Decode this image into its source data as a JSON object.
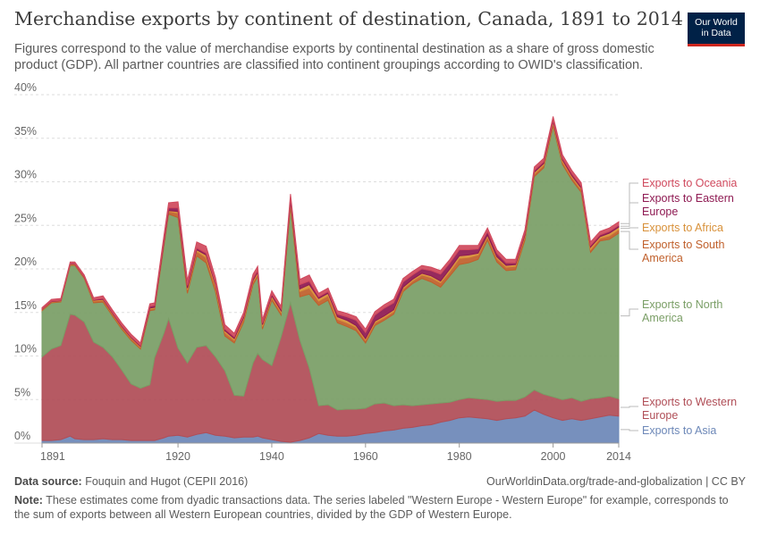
{
  "header": {
    "title": "Merchandise exports by continent of destination, Canada, 1891 to 2014",
    "subtitle": "Figures correspond to the value of merchandise exports by continental destination as a share of gross domestic product (GDP). All partner countries are classified into continent groupings according to OWID's classification."
  },
  "logo": {
    "line1": "Our World",
    "line2": "in Data",
    "bg": "#002147",
    "accent": "#ce261e"
  },
  "footer": {
    "source_label": "Data source:",
    "source_text": "Fouquin and Hugot (CEPII 2016)",
    "url": "OurWorldinData.org/trade-and-globalization | CC BY",
    "note_label": "Note:",
    "note_text": "These estimates come from dyadic transactions data. The series labeled \"Western Europe - Western Europe\" for example, corresponds to the sum of exports between all Western European countries, divided by the GDP of Western Europe."
  },
  "chart_data": {
    "type": "area",
    "stacked": true,
    "xlabel": "",
    "ylabel": "",
    "xlim": [
      1891,
      2014
    ],
    "ylim": [
      0,
      40
    ],
    "y_ticks": [
      "0%",
      "5%",
      "10%",
      "15%",
      "20%",
      "25%",
      "30%",
      "35%",
      "40%"
    ],
    "x_ticks": [
      "1891",
      "1920",
      "1940",
      "1960",
      "1980",
      "2000",
      "2014"
    ],
    "grid": true,
    "legend_placement": "right (inline labels)",
    "x": [
      1891,
      1893,
      1895,
      1897,
      1898,
      1900,
      1902,
      1904,
      1906,
      1908,
      1910,
      1912,
      1914,
      1915,
      1917,
      1918,
      1920,
      1922,
      1924,
      1926,
      1928,
      1930,
      1932,
      1934,
      1936,
      1937,
      1938,
      1940,
      1942,
      1944,
      1946,
      1948,
      1950,
      1952,
      1954,
      1956,
      1958,
      1960,
      1962,
      1964,
      1966,
      1968,
      1970,
      1972,
      1974,
      1976,
      1978,
      1980,
      1982,
      1984,
      1986,
      1988,
      1990,
      1992,
      1994,
      1996,
      1998,
      2000,
      2002,
      2004,
      2006,
      2008,
      2010,
      2012,
      2014
    ],
    "series": [
      {
        "name": "Exports to Asia",
        "color": "#6d88b8",
        "values": [
          0.3,
          0.3,
          0.4,
          0.8,
          0.5,
          0.4,
          0.4,
          0.5,
          0.4,
          0.4,
          0.3,
          0.3,
          0.3,
          0.3,
          0.6,
          0.8,
          0.9,
          0.7,
          1.0,
          1.2,
          0.9,
          0.8,
          0.6,
          0.7,
          0.7,
          0.8,
          0.6,
          0.4,
          0.2,
          0.1,
          0.3,
          0.6,
          1.1,
          0.9,
          0.8,
          0.8,
          0.9,
          1.1,
          1.2,
          1.4,
          1.5,
          1.7,
          1.8,
          2.0,
          2.1,
          2.4,
          2.6,
          2.9,
          3.0,
          2.9,
          2.8,
          2.6,
          2.8,
          2.9,
          3.1,
          3.8,
          3.3,
          2.9,
          2.6,
          2.8,
          2.6,
          2.8,
          3.0,
          3.2,
          3.1
        ]
      },
      {
        "name": "Exports to Western Europe",
        "color": "#b04e57",
        "values": [
          9.6,
          10.5,
          10.8,
          14.0,
          14.2,
          13.5,
          11.2,
          10.5,
          9.5,
          8.0,
          6.5,
          6.0,
          6.4,
          9.5,
          12.0,
          13.5,
          10.0,
          8.5,
          10.0,
          10.0,
          9.0,
          7.5,
          4.9,
          4.7,
          8.5,
          9.5,
          9.0,
          8.5,
          12.0,
          16.0,
          11.5,
          8.0,
          3.2,
          3.5,
          3.0,
          3.1,
          3.0,
          2.9,
          3.3,
          3.2,
          2.8,
          2.7,
          2.5,
          2.4,
          2.4,
          2.2,
          2.1,
          2.1,
          2.2,
          2.2,
          2.2,
          2.2,
          2.1,
          2.0,
          2.2,
          2.3,
          2.3,
          2.4,
          2.4,
          2.4,
          2.2,
          2.3,
          2.2,
          2.2,
          2.0
        ]
      },
      {
        "name": "Exports to North America",
        "color": "#7a9e66",
        "values": [
          5.3,
          5.3,
          5.0,
          5.6,
          5.7,
          5.0,
          4.5,
          5.2,
          4.7,
          4.7,
          5.0,
          4.5,
          8.5,
          5.5,
          10.0,
          12.0,
          15.0,
          8.0,
          10.5,
          9.5,
          7.5,
          4.0,
          6.0,
          8.5,
          9.0,
          8.8,
          3.5,
          7.5,
          2.5,
          11.0,
          5.0,
          8.5,
          11.5,
          12.0,
          10.0,
          9.5,
          9.0,
          7.5,
          9.0,
          9.5,
          10.5,
          13.0,
          14.0,
          14.5,
          14.0,
          13.3,
          14.5,
          15.5,
          15.5,
          16.0,
          18.3,
          16.0,
          14.9,
          15.0,
          18.0,
          24.5,
          26.0,
          31.1,
          27.0,
          25.0,
          24.0,
          16.8,
          18.0,
          18.0,
          19.0
        ]
      },
      {
        "name": "Exports to South America",
        "color": "#c0602c",
        "values": [
          0.1,
          0.1,
          0.1,
          0.1,
          0.1,
          0.1,
          0.2,
          0.2,
          0.2,
          0.2,
          0.2,
          0.2,
          0.2,
          0.2,
          0.3,
          0.3,
          0.5,
          0.4,
          0.5,
          0.6,
          0.5,
          0.4,
          0.3,
          0.3,
          0.3,
          0.3,
          0.3,
          0.3,
          0.3,
          0.4,
          0.6,
          0.7,
          0.5,
          0.5,
          0.4,
          0.4,
          0.4,
          0.3,
          0.3,
          0.3,
          0.3,
          0.3,
          0.3,
          0.4,
          0.5,
          0.5,
          0.5,
          0.7,
          0.6,
          0.5,
          0.4,
          0.4,
          0.4,
          0.4,
          0.4,
          0.3,
          0.3,
          0.3,
          0.3,
          0.3,
          0.3,
          0.3,
          0.3,
          0.4,
          0.4
        ]
      },
      {
        "name": "Exports to Africa",
        "color": "#d8913a",
        "values": [
          0.05,
          0.05,
          0.05,
          0.05,
          0.05,
          0.05,
          0.1,
          0.1,
          0.1,
          0.1,
          0.1,
          0.1,
          0.1,
          0.1,
          0.1,
          0.1,
          0.2,
          0.2,
          0.2,
          0.3,
          0.3,
          0.2,
          0.2,
          0.2,
          0.2,
          0.2,
          0.2,
          0.2,
          0.2,
          0.3,
          0.3,
          0.4,
          0.3,
          0.3,
          0.3,
          0.3,
          0.2,
          0.2,
          0.2,
          0.2,
          0.2,
          0.2,
          0.2,
          0.2,
          0.2,
          0.2,
          0.3,
          0.3,
          0.3,
          0.2,
          0.2,
          0.2,
          0.2,
          0.2,
          0.2,
          0.2,
          0.2,
          0.2,
          0.2,
          0.2,
          0.2,
          0.3,
          0.2,
          0.3,
          0.3
        ]
      },
      {
        "name": "Exports to Eastern Europe",
        "color": "#8e1a52",
        "values": [
          0.05,
          0.05,
          0.05,
          0.05,
          0.05,
          0.05,
          0.05,
          0.1,
          0.1,
          0.1,
          0.1,
          0.1,
          0.2,
          0.2,
          0.3,
          0.3,
          0.4,
          0.3,
          0.2,
          0.2,
          0.2,
          0.2,
          0.2,
          0.2,
          0.2,
          0.2,
          0.2,
          0.2,
          0.2,
          0.4,
          0.5,
          0.4,
          0.2,
          0.2,
          0.3,
          0.4,
          0.6,
          0.7,
          0.7,
          0.9,
          0.8,
          0.6,
          0.5,
          0.5,
          0.6,
          0.8,
          0.7,
          0.7,
          0.6,
          0.5,
          0.4,
          0.4,
          0.3,
          0.2,
          0.2,
          0.2,
          0.2,
          0.2,
          0.2,
          0.2,
          0.2,
          0.2,
          0.2,
          0.2,
          0.2
        ]
      },
      {
        "name": "Exports to Oceania",
        "color": "#d04a5e",
        "values": [
          0.15,
          0.2,
          0.2,
          0.2,
          0.2,
          0.2,
          0.25,
          0.3,
          0.3,
          0.3,
          0.3,
          0.3,
          0.3,
          0.3,
          0.5,
          0.6,
          0.7,
          0.6,
          0.7,
          0.8,
          0.6,
          0.5,
          0.4,
          0.4,
          0.5,
          0.5,
          0.4,
          0.4,
          0.3,
          0.4,
          0.6,
          0.7,
          0.4,
          0.4,
          0.4,
          0.4,
          0.4,
          0.4,
          0.4,
          0.4,
          0.4,
          0.4,
          0.4,
          0.4,
          0.4,
          0.4,
          0.4,
          0.5,
          0.5,
          0.4,
          0.4,
          0.4,
          0.4,
          0.4,
          0.4,
          0.4,
          0.4,
          0.4,
          0.4,
          0.4,
          0.4,
          0.4,
          0.4,
          0.4,
          0.4
        ]
      }
    ],
    "labels": [
      {
        "series": "Exports to Oceania",
        "lines": [
          "Exports to Oceania"
        ],
        "color": "#d04a5e"
      },
      {
        "series": "Exports to Eastern Europe",
        "lines": [
          "Exports to Eastern",
          "Europe"
        ],
        "color": "#8e1a52"
      },
      {
        "series": "Exports to Africa",
        "lines": [
          "Exports to Africa"
        ],
        "color": "#d8913a"
      },
      {
        "series": "Exports to South America",
        "lines": [
          "Exports to South",
          "America"
        ],
        "color": "#c0602c"
      },
      {
        "series": "Exports to North America",
        "lines": [
          "Exports to North",
          "America"
        ],
        "color": "#7a9e66"
      },
      {
        "series": "Exports to Western Europe",
        "lines": [
          "Exports to Western",
          "Europe"
        ],
        "color": "#b04e57"
      },
      {
        "series": "Exports to Asia",
        "lines": [
          "Exports to Asia"
        ],
        "color": "#6d88b8"
      }
    ]
  }
}
